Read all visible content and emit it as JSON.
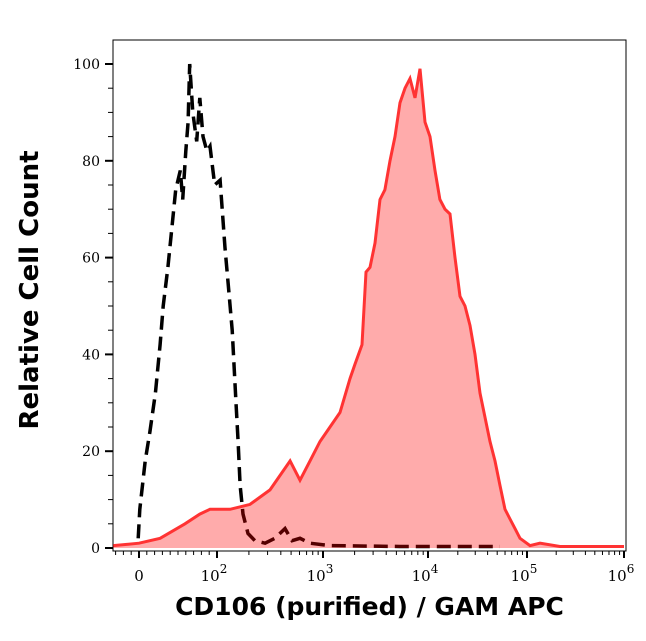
{
  "chart_data": {
    "type": "area",
    "title": "",
    "xlabel": "CD106 (purified) / GAM APC",
    "ylabel": "Relative Cell Count",
    "x_scale": "logicle (biexponential)",
    "xlim": [
      -33,
      1100000
    ],
    "ylim": [
      0,
      105
    ],
    "x_ticks": [
      {
        "value": 0,
        "base": "0",
        "exp": ""
      },
      {
        "value": 100,
        "base": "10",
        "exp": "2"
      },
      {
        "value": 1000,
        "base": "10",
        "exp": "3"
      },
      {
        "value": 10000,
        "base": "10",
        "exp": "4"
      },
      {
        "value": 100000,
        "base": "10",
        "exp": "5"
      },
      {
        "value": 1000000,
        "base": "10",
        "exp": "6"
      }
    ],
    "y_ticks": [
      0,
      20,
      40,
      60,
      80,
      100
    ],
    "grid": false,
    "legend": "none",
    "series": [
      {
        "style": "dashed-line",
        "color": "#000000",
        "x": [
          -1,
          1,
          8,
          14,
          21,
          27,
          31,
          37,
          42,
          47,
          53,
          56,
          60,
          63,
          65,
          69,
          74,
          78,
          82,
          87,
          91,
          97,
          107,
          119,
          127,
          139,
          151,
          158,
          165,
          176,
          196,
          228,
          284,
          352,
          438,
          511,
          607,
          754,
          1166,
          5410,
          53300
        ],
        "y": [
          2,
          8,
          18,
          24,
          32,
          42,
          50,
          58,
          66,
          74,
          78,
          72,
          82,
          88,
          100,
          90,
          84,
          93,
          85,
          82,
          83,
          75,
          76,
          62,
          55,
          45,
          30,
          22,
          13,
          7,
          3,
          1.5,
          1,
          2,
          4,
          1.5,
          2,
          1,
          0.5,
          0.3,
          0.3
        ]
      },
      {
        "style": "filled-line",
        "color": "#ff3333",
        "fill": "#ffaaaa",
        "x": [
          -33,
          0,
          27,
          59,
          78,
          91,
          133,
          205,
          316,
          489,
          607,
          754,
          937,
          1166,
          1452,
          1807,
          2018,
          2351,
          2570,
          2805,
          3126,
          3490,
          3890,
          4345,
          4850,
          5410,
          6040,
          6740,
          7520,
          8390,
          9360,
          10470,
          11770,
          13200,
          14850,
          16670,
          18740,
          21030,
          23640,
          26550,
          29850,
          33500,
          37650,
          42280,
          47500,
          53300,
          59950,
          67300,
          75650,
          84950,
          107400,
          136100,
          218800,
          566000,
          1000000
        ],
        "y": [
          0.5,
          1,
          2,
          5,
          7,
          8,
          8,
          9,
          12,
          18,
          14,
          18,
          22,
          25,
          28,
          35,
          38,
          42,
          57,
          58,
          63,
          72,
          74,
          80,
          85,
          92,
          95,
          97,
          93,
          99,
          88,
          85,
          78,
          72,
          70,
          69,
          60,
          52,
          50,
          46,
          40,
          32,
          27,
          22,
          18,
          13,
          8,
          6,
          4,
          2,
          0.5,
          1,
          0.3,
          0.3,
          0.3
        ]
      }
    ]
  }
}
